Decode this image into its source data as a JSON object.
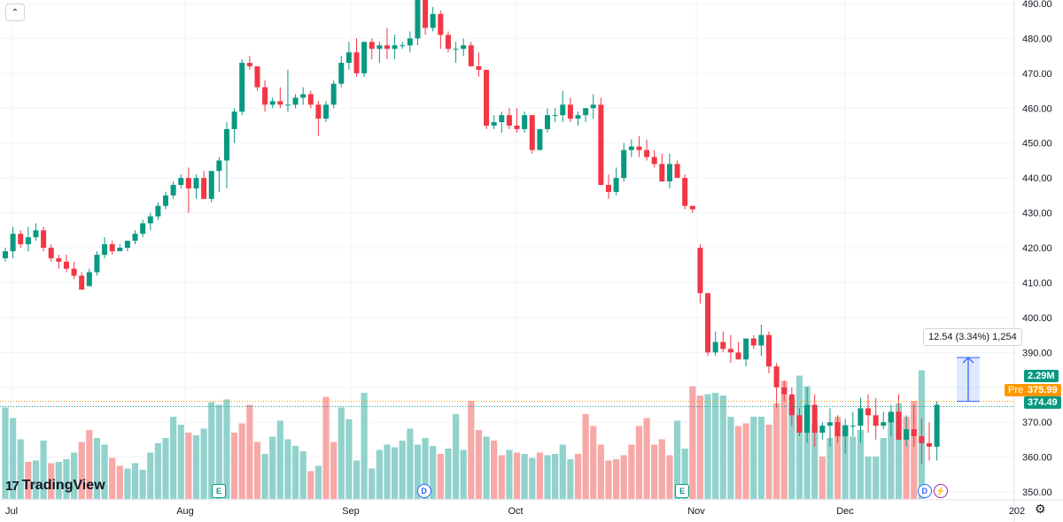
{
  "chart_data": {
    "type": "candlestick",
    "y_range": [
      348,
      491
    ],
    "y_ticks": [
      "490.00",
      "480.00",
      "470.00",
      "460.00",
      "450.00",
      "440.00",
      "430.00",
      "420.00",
      "410.00",
      "400.00",
      "390.00",
      "380.00",
      "370.00",
      "360.00",
      "350.00"
    ],
    "x_ticks": [
      "Jul",
      "Aug",
      "Sep",
      "Oct",
      "Nov",
      "Dec",
      "202"
    ],
    "candles": [
      [
        417,
        420,
        416,
        419
      ],
      [
        419,
        426,
        417,
        424
      ],
      [
        424,
        425,
        420,
        421
      ],
      [
        421,
        426,
        419,
        423
      ],
      [
        423,
        427,
        422,
        425
      ],
      [
        425,
        426,
        419,
        420
      ],
      [
        420,
        421,
        416,
        417
      ],
      [
        417,
        418,
        414,
        416
      ],
      [
        416,
        418,
        413,
        414
      ],
      [
        414,
        416,
        411,
        412
      ],
      [
        412,
        413,
        408,
        408
      ],
      [
        409,
        414,
        409,
        413
      ],
      [
        413,
        419,
        412,
        418
      ],
      [
        418,
        423,
        417,
        421
      ],
      [
        421,
        422,
        418,
        419
      ],
      [
        419,
        421,
        419,
        420
      ],
      [
        420,
        422,
        419,
        422
      ],
      [
        422,
        425,
        421,
        424
      ],
      [
        424,
        428,
        423,
        427
      ],
      [
        427,
        430,
        425,
        429
      ],
      [
        429,
        433,
        428,
        432
      ],
      [
        432,
        436,
        431,
        435
      ],
      [
        435,
        439,
        434,
        438
      ],
      [
        438,
        441,
        437,
        440
      ],
      [
        440,
        443,
        430,
        437
      ],
      [
        437,
        441,
        434,
        440
      ],
      [
        440,
        442,
        434,
        434
      ],
      [
        434,
        442,
        433,
        442
      ],
      [
        442,
        446,
        436,
        445
      ],
      [
        445,
        456,
        437,
        454
      ],
      [
        454,
        460,
        450,
        459
      ],
      [
        459,
        474,
        458,
        473
      ],
      [
        473,
        475,
        471,
        472
      ],
      [
        472,
        472,
        465,
        466
      ],
      [
        466,
        468,
        459,
        461
      ],
      [
        461,
        463,
        460,
        462
      ],
      [
        462,
        466,
        460,
        461
      ],
      [
        461,
        471,
        459,
        461
      ],
      [
        461,
        464,
        460,
        463
      ],
      [
        463,
        466,
        461,
        464
      ],
      [
        464,
        465,
        460,
        461
      ],
      [
        461,
        462,
        452,
        457
      ],
      [
        457,
        462,
        456,
        461
      ],
      [
        461,
        468,
        460,
        467
      ],
      [
        467,
        475,
        466,
        473
      ],
      [
        473,
        479,
        471,
        476
      ],
      [
        476,
        480,
        469,
        470
      ],
      [
        470,
        478,
        469,
        479
      ],
      [
        479,
        480,
        474,
        477
      ],
      [
        477,
        479,
        473,
        478
      ],
      [
        478,
        483,
        474,
        477
      ],
      [
        477,
        481,
        474,
        478
      ],
      [
        478,
        479,
        477,
        478
      ],
      [
        478,
        482,
        476,
        480
      ],
      [
        480,
        493,
        478,
        491
      ],
      [
        491,
        492,
        481,
        483
      ],
      [
        483,
        489,
        482,
        487
      ],
      [
        487,
        488,
        477,
        481
      ],
      [
        481,
        482,
        476,
        477
      ],
      [
        477,
        479,
        473,
        477
      ],
      [
        477,
        480,
        475,
        478
      ],
      [
        478,
        479,
        472,
        472
      ],
      [
        472,
        476,
        469,
        471
      ],
      [
        471,
        471,
        454,
        455
      ],
      [
        455,
        458,
        454,
        456
      ],
      [
        456,
        459,
        453,
        458
      ],
      [
        458,
        460,
        454,
        455
      ],
      [
        455,
        460,
        453,
        454
      ],
      [
        454,
        459,
        453,
        458
      ],
      [
        458,
        458,
        447,
        448
      ],
      [
        448,
        453,
        448,
        454
      ],
      [
        454,
        460,
        453,
        458
      ],
      [
        458,
        460,
        456,
        458
      ],
      [
        458,
        465,
        456,
        461
      ],
      [
        461,
        463,
        456,
        457
      ],
      [
        457,
        459,
        455,
        458
      ],
      [
        458,
        460,
        456,
        460
      ],
      [
        460,
        464,
        457,
        461
      ],
      [
        461,
        463,
        439,
        438
      ],
      [
        438,
        441,
        434,
        436
      ],
      [
        436,
        443,
        435,
        440
      ],
      [
        440,
        450,
        439,
        448
      ],
      [
        448,
        451,
        446,
        449
      ],
      [
        449,
        452,
        446,
        448
      ],
      [
        448,
        451,
        445,
        446
      ],
      [
        446,
        448,
        443,
        444
      ],
      [
        444,
        447,
        439,
        439
      ],
      [
        439,
        447,
        437,
        444
      ],
      [
        444,
        445,
        440,
        440
      ],
      [
        440,
        441,
        431,
        432
      ],
      [
        432,
        432,
        430,
        431
      ],
      [
        420,
        421,
        404,
        407
      ],
      [
        407,
        407,
        389,
        390
      ],
      [
        390,
        396,
        389,
        393
      ],
      [
        393,
        396,
        390,
        391
      ],
      [
        391,
        395,
        387,
        390
      ],
      [
        390,
        393,
        388,
        388
      ],
      [
        388,
        394,
        386,
        394
      ],
      [
        394,
        395,
        391,
        392
      ],
      [
        392,
        398,
        389,
        395
      ],
      [
        395,
        396,
        384,
        386
      ],
      [
        386,
        387,
        374,
        380
      ],
      [
        380,
        382,
        376,
        378
      ],
      [
        378,
        380,
        369,
        372
      ],
      [
        372,
        374,
        366,
        367
      ],
      [
        367,
        380,
        364,
        375
      ],
      [
        375,
        378,
        363,
        367
      ],
      [
        367,
        370,
        365,
        369
      ],
      [
        369,
        374,
        363,
        370
      ],
      [
        370,
        372,
        364,
        366
      ],
      [
        366,
        371,
        361,
        369
      ],
      [
        369,
        373,
        366,
        369
      ],
      [
        369,
        377,
        364,
        374
      ],
      [
        374,
        378,
        367,
        372
      ],
      [
        372,
        377,
        365,
        369
      ],
      [
        369,
        373,
        368,
        370
      ],
      [
        370,
        375,
        366,
        373
      ],
      [
        373,
        378,
        366,
        365
      ],
      [
        365,
        372,
        363,
        368
      ],
      [
        368,
        375,
        363,
        366
      ],
      [
        366,
        371,
        358,
        364
      ],
      [
        364,
        370,
        359,
        363
      ],
      [
        363,
        376,
        359,
        375
      ]
    ],
    "volumes": [
      [
        69,
        "up"
      ],
      [
        61,
        "up"
      ],
      [
        45,
        "up"
      ],
      [
        28,
        "down"
      ],
      [
        29,
        "up"
      ],
      [
        44,
        "up"
      ],
      [
        27,
        "down"
      ],
      [
        28,
        "up"
      ],
      [
        30,
        "up"
      ],
      [
        35,
        "up"
      ],
      [
        43,
        "down"
      ],
      [
        52,
        "down"
      ],
      [
        46,
        "up"
      ],
      [
        41,
        "up"
      ],
      [
        31,
        "down"
      ],
      [
        25,
        "down"
      ],
      [
        23,
        "up"
      ],
      [
        27,
        "up"
      ],
      [
        22,
        "up"
      ],
      [
        35,
        "up"
      ],
      [
        42,
        "up"
      ],
      [
        46,
        "up"
      ],
      [
        62,
        "up"
      ],
      [
        56,
        "up"
      ],
      [
        50,
        "down"
      ],
      [
        48,
        "up"
      ],
      [
        53,
        "up"
      ],
      [
        73,
        "up"
      ],
      [
        71,
        "up"
      ],
      [
        75,
        "up"
      ],
      [
        50,
        "down"
      ],
      [
        57,
        "down"
      ],
      [
        71,
        "down"
      ],
      [
        43,
        "down"
      ],
      [
        34,
        "up"
      ],
      [
        47,
        "up"
      ],
      [
        59,
        "up"
      ],
      [
        45,
        "up"
      ],
      [
        40,
        "up"
      ],
      [
        36,
        "up"
      ],
      [
        21,
        "down"
      ],
      [
        25,
        "up"
      ],
      [
        77,
        "down"
      ],
      [
        43,
        "down"
      ],
      [
        69,
        "up"
      ],
      [
        60,
        "up"
      ],
      [
        29,
        "up"
      ],
      [
        80,
        "up"
      ],
      [
        23,
        "up"
      ],
      [
        37,
        "up"
      ],
      [
        41,
        "up"
      ],
      [
        39,
        "up"
      ],
      [
        44,
        "up"
      ],
      [
        53,
        "up"
      ],
      [
        41,
        "up"
      ],
      [
        46,
        "up"
      ],
      [
        40,
        "up"
      ],
      [
        34,
        "down"
      ],
      [
        38,
        "up"
      ],
      [
        64,
        "up"
      ],
      [
        37,
        "up"
      ],
      [
        74,
        "down"
      ],
      [
        52,
        "down"
      ],
      [
        47,
        "up"
      ],
      [
        44,
        "down"
      ],
      [
        33,
        "down"
      ],
      [
        37,
        "up"
      ],
      [
        35,
        "down"
      ],
      [
        34,
        "up"
      ],
      [
        31,
        "up"
      ],
      [
        35,
        "down"
      ],
      [
        33,
        "up"
      ],
      [
        34,
        "up"
      ],
      [
        41,
        "up"
      ],
      [
        30,
        "up"
      ],
      [
        34,
        "down"
      ],
      [
        64,
        "down"
      ],
      [
        55,
        "down"
      ],
      [
        41,
        "down"
      ],
      [
        29,
        "down"
      ],
      [
        30,
        "down"
      ],
      [
        33,
        "down"
      ],
      [
        41,
        "down"
      ],
      [
        55,
        "down"
      ],
      [
        61,
        "down"
      ],
      [
        41,
        "down"
      ],
      [
        45,
        "down"
      ],
      [
        33,
        "down"
      ],
      [
        59,
        "up"
      ],
      [
        38,
        "up"
      ],
      [
        85,
        "down"
      ],
      [
        78,
        "down"
      ],
      [
        79,
        "up"
      ],
      [
        80,
        "up"
      ],
      [
        78,
        "up"
      ],
      [
        62,
        "up"
      ],
      [
        55,
        "down"
      ],
      [
        57,
        "down"
      ],
      [
        62,
        "up"
      ],
      [
        62,
        "up"
      ],
      [
        56,
        "down"
      ],
      [
        72,
        "down"
      ],
      [
        89,
        "down"
      ],
      [
        77,
        "up"
      ],
      [
        93,
        "up"
      ],
      [
        85,
        "up"
      ],
      [
        57,
        "up"
      ],
      [
        32,
        "down"
      ],
      [
        46,
        "up"
      ],
      [
        62,
        "down"
      ],
      [
        56,
        "up"
      ],
      [
        47,
        "up"
      ],
      [
        52,
        "up"
      ],
      [
        32,
        "up"
      ],
      [
        32,
        "up"
      ],
      [
        46,
        "up"
      ],
      [
        65,
        "up"
      ],
      [
        72,
        "up"
      ],
      [
        62,
        "down"
      ],
      [
        74,
        "down"
      ],
      [
        97,
        "up"
      ]
    ],
    "candle_colors": {
      "up": "#089981",
      "down": "#f23645"
    },
    "volume_colors": {
      "up": "#92d2cc",
      "down": "#f7a9a7"
    },
    "last_price_line": 374.49,
    "pre_price_line": 375.99,
    "grid": true,
    "measurement": {
      "from": 375.99,
      "to": 388.53
    }
  },
  "labels": {
    "measure_text": "12.54 (3.34%) 1,254",
    "volume_tag": "2.29M",
    "pre_tag_label": "Pre",
    "pre_tag_value": "375.99",
    "last_tag_value": "374.49",
    "logo_text": "TradingView",
    "collapse_glyph": "⌃",
    "settings_glyph": "⚙"
  },
  "events": [
    {
      "kind": "earn",
      "text": "E",
      "pos": 0.205
    },
    {
      "kind": "div",
      "text": "D",
      "pos": 0.398
    },
    {
      "kind": "earn",
      "text": "E",
      "pos": 0.641
    },
    {
      "kind": "div",
      "text": "D",
      "pos": 0.869
    },
    {
      "kind": "split",
      "text": "⚡",
      "pos": 0.884
    }
  ],
  "icons": {
    "collapse": "chevron-up-icon",
    "settings": "gear-icon",
    "logo": "tradingview-logo-icon"
  }
}
